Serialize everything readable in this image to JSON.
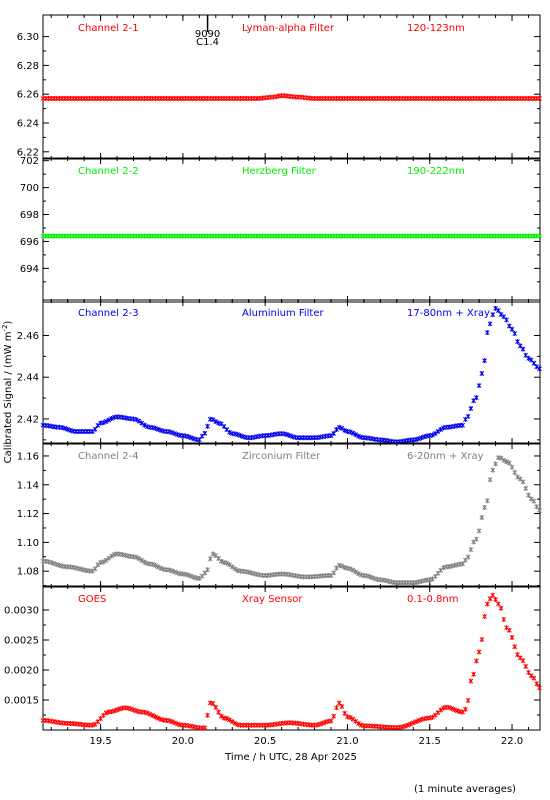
{
  "figure": {
    "ylabel": "Calibrated Signal / (mW m",
    "ylabel_sup": "-2",
    "ylabel_close": ")",
    "xlabel": "Time / h UTC, 28 Apr 2025",
    "footnote": "(1 minute averages)",
    "flare_marker": {
      "label1": "9090",
      "label2": "C1.4",
      "x": 20.15
    }
  },
  "chart_data": [
    {
      "type": "scatter",
      "panel": "channel-2-1",
      "texts": [
        "Channel 2-1",
        "Lyman-alpha Filter",
        "120-123nm"
      ],
      "color": "#ff0000",
      "ylim": [
        6.215,
        6.315
      ],
      "xlim": [
        19.15,
        22.17
      ],
      "yticks": [
        6.22,
        6.24,
        6.26,
        6.28,
        6.3
      ],
      "ytick_labels": [
        "6.22",
        "6.24",
        "6.26",
        "6.28",
        "6.30"
      ],
      "series": [
        {
          "knots": [
            [
              19.15,
              6.257
            ],
            [
              20.45,
              6.257
            ],
            [
              20.55,
              6.258
            ],
            [
              20.6,
              6.259
            ],
            [
              20.7,
              6.258
            ],
            [
              20.8,
              6.257
            ],
            [
              22.17,
              6.257
            ]
          ]
        }
      ]
    },
    {
      "type": "scatter",
      "panel": "channel-2-2",
      "texts": [
        "Channel 2-2",
        "Herzberg Filter",
        "190-222nm"
      ],
      "color": "#00ee00",
      "ylim": [
        691.5,
        702.2
      ],
      "xlim": [
        19.15,
        22.17
      ],
      "yticks": [
        694,
        696,
        698,
        700,
        702
      ],
      "ytick_labels": [
        "694",
        "696",
        "698",
        "700",
        "702"
      ],
      "series": [
        {
          "knots": [
            [
              19.15,
              696.4
            ],
            [
              22.17,
              696.4
            ]
          ]
        }
      ]
    },
    {
      "type": "scatter",
      "panel": "channel-2-3",
      "texts": [
        "Channel 2-3",
        "Aluminium Filter",
        "17-80nm + Xray"
      ],
      "color": "#0000ee",
      "ylim": [
        2.408,
        2.477
      ],
      "xlim": [
        19.15,
        22.17
      ],
      "yticks": [
        2.42,
        2.44,
        2.46
      ],
      "ytick_labels": [
        "2.42",
        "2.44",
        "2.46"
      ],
      "series": [
        {
          "knots": [
            [
              19.15,
              2.417
            ],
            [
              19.25,
              2.416
            ],
            [
              19.35,
              2.414
            ],
            [
              19.45,
              2.414
            ],
            [
              19.5,
              2.418
            ],
            [
              19.6,
              2.421
            ],
            [
              19.7,
              2.42
            ],
            [
              19.8,
              2.416
            ],
            [
              19.9,
              2.414
            ],
            [
              20.0,
              2.412
            ],
            [
              20.1,
              2.41
            ],
            [
              20.13,
              2.413
            ],
            [
              20.17,
              2.42
            ],
            [
              20.22,
              2.418
            ],
            [
              20.3,
              2.413
            ],
            [
              20.4,
              2.411
            ],
            [
              20.5,
              2.412
            ],
            [
              20.6,
              2.413
            ],
            [
              20.7,
              2.411
            ],
            [
              20.8,
              2.411
            ],
            [
              20.9,
              2.412
            ],
            [
              20.95,
              2.416
            ],
            [
              21.0,
              2.414
            ],
            [
              21.1,
              2.411
            ],
            [
              21.2,
              2.41
            ],
            [
              21.3,
              2.409
            ],
            [
              21.4,
              2.41
            ],
            [
              21.5,
              2.412
            ],
            [
              21.6,
              2.416
            ],
            [
              21.7,
              2.417
            ],
            [
              21.72,
              2.42
            ],
            [
              21.78,
              2.43
            ],
            [
              21.82,
              2.442
            ],
            [
              21.86,
              2.465
            ],
            [
              21.9,
              2.473
            ],
            [
              21.95,
              2.469
            ],
            [
              22.0,
              2.463
            ],
            [
              22.05,
              2.455
            ],
            [
              22.1,
              2.449
            ],
            [
              22.17,
              2.444
            ]
          ]
        }
      ]
    },
    {
      "type": "scatter",
      "panel": "channel-2-4",
      "texts": [
        "Channel 2-4",
        "Zirconium Filter",
        "6-20nm + Xray"
      ],
      "color": "#808080",
      "ylim": [
        1.069,
        1.169
      ],
      "xlim": [
        19.15,
        22.17
      ],
      "yticks": [
        1.08,
        1.1,
        1.12,
        1.14,
        1.16
      ],
      "ytick_labels": [
        "1.08",
        "1.10",
        "1.12",
        "1.14",
        "1.16"
      ],
      "series": [
        {
          "knots": [
            [
              19.15,
              1.087
            ],
            [
              19.3,
              1.083
            ],
            [
              19.45,
              1.08
            ],
            [
              19.5,
              1.086
            ],
            [
              19.6,
              1.092
            ],
            [
              19.7,
              1.09
            ],
            [
              19.8,
              1.085
            ],
            [
              19.9,
              1.081
            ],
            [
              20.0,
              1.078
            ],
            [
              20.1,
              1.075
            ],
            [
              20.14,
              1.079
            ],
            [
              20.18,
              1.092
            ],
            [
              20.25,
              1.086
            ],
            [
              20.35,
              1.08
            ],
            [
              20.5,
              1.077
            ],
            [
              20.6,
              1.078
            ],
            [
              20.75,
              1.076
            ],
            [
              20.9,
              1.077
            ],
            [
              20.95,
              1.084
            ],
            [
              21.0,
              1.082
            ],
            [
              21.1,
              1.077
            ],
            [
              21.2,
              1.074
            ],
            [
              21.3,
              1.072
            ],
            [
              21.4,
              1.072
            ],
            [
              21.5,
              1.074
            ],
            [
              21.6,
              1.083
            ],
            [
              21.7,
              1.085
            ],
            [
              21.72,
              1.088
            ],
            [
              21.78,
              1.102
            ],
            [
              21.84,
              1.125
            ],
            [
              21.88,
              1.15
            ],
            [
              21.92,
              1.159
            ],
            [
              21.97,
              1.156
            ],
            [
              22.05,
              1.144
            ],
            [
              22.12,
              1.13
            ],
            [
              22.17,
              1.122
            ]
          ]
        }
      ]
    },
    {
      "type": "scatter",
      "panel": "goes",
      "texts": [
        "GOES",
        "Xray Sensor",
        "0.1-0.8nm"
      ],
      "color": "#ff0000",
      "ylim": [
        0.001,
        0.0034
      ],
      "xlim": [
        19.15,
        22.17
      ],
      "yticks": [
        0.0015,
        0.002,
        0.0025,
        0.003
      ],
      "ytick_labels": [
        "0.0015",
        "0.0020",
        "0.0025",
        "0.0030"
      ],
      "series": [
        {
          "knots": [
            [
              19.15,
              0.00116
            ],
            [
              19.3,
              0.00111
            ],
            [
              19.45,
              0.00108
            ],
            [
              19.55,
              0.0013
            ],
            [
              19.65,
              0.00137
            ],
            [
              19.75,
              0.0013
            ],
            [
              19.9,
              0.00116
            ],
            [
              20.0,
              0.00108
            ],
            [
              20.13,
              0.00103
            ],
            [
              20.17,
              0.00146
            ],
            [
              20.25,
              0.0012
            ],
            [
              20.35,
              0.00108
            ],
            [
              20.5,
              0.00108
            ],
            [
              20.65,
              0.00112
            ],
            [
              20.8,
              0.00108
            ],
            [
              20.9,
              0.00115
            ],
            [
              20.95,
              0.00145
            ],
            [
              21.0,
              0.00122
            ],
            [
              21.1,
              0.00107
            ],
            [
              21.3,
              0.00104
            ],
            [
              21.5,
              0.0012
            ],
            [
              21.6,
              0.00138
            ],
            [
              21.7,
              0.0013
            ],
            [
              21.72,
              0.00135
            ],
            [
              21.76,
              0.0019
            ],
            [
              21.8,
              0.0023
            ],
            [
              21.85,
              0.0031
            ],
            [
              21.88,
              0.00325
            ],
            [
              21.92,
              0.0031
            ],
            [
              21.97,
              0.0027
            ],
            [
              22.05,
              0.0022
            ],
            [
              22.12,
              0.0019
            ],
            [
              22.17,
              0.0017
            ]
          ]
        }
      ]
    }
  ],
  "xaxis": {
    "ticks": [
      19.5,
      20.0,
      20.5,
      21.0,
      21.5,
      22.0
    ],
    "tick_labels": [
      "19.5",
      "20.0",
      "20.5",
      "21.0",
      "21.5",
      "22.0"
    ]
  }
}
